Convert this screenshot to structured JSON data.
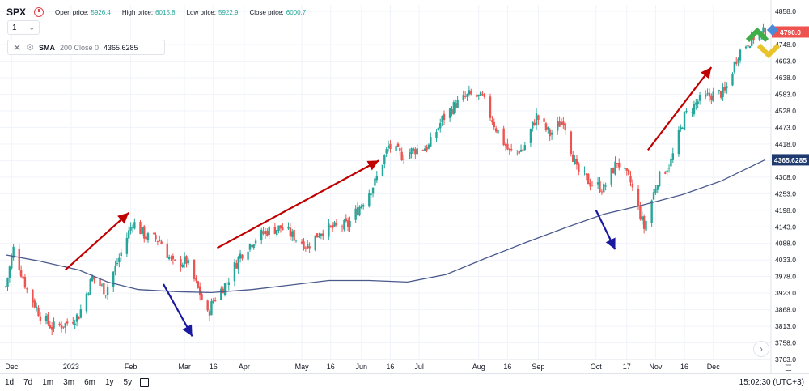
{
  "header": {
    "symbol": "SPX",
    "ohlc": [
      {
        "label": "Open price:",
        "value": "5926.4"
      },
      {
        "label": "High price:",
        "value": "6015.8"
      },
      {
        "label": "Low price:",
        "value": "5922.9"
      },
      {
        "label": "Close price:",
        "value": "6000.7"
      }
    ]
  },
  "interval": {
    "value": "1"
  },
  "indicator": {
    "name": "SMA",
    "params": "200 Close 0",
    "value": "4365.6285"
  },
  "bottom_bar": {
    "ranges": [
      "1d",
      "7d",
      "1m",
      "3m",
      "6m",
      "1y",
      "5y"
    ],
    "time": "15:02:30 (UTC+3)"
  },
  "colors": {
    "up": "#26a69a",
    "down": "#ef5350",
    "sma": "#4a5a8c",
    "sma_label_bg": "#1e3a6e",
    "red_arrow": "#c00000",
    "blue_arrow": "#1a1aa0",
    "price_label_bg": "#ef5350"
  },
  "chart_data": {
    "type": "candlestick",
    "y_ticks": [
      "4858.0",
      "4748.0",
      "4693.0",
      "4638.0",
      "4583.0",
      "4528.0",
      "4473.0",
      "4418.0",
      "4363.0",
      "4308.0",
      "4253.0",
      "4198.0",
      "4143.0",
      "4088.0",
      "4033.0",
      "3978.0",
      "3923.0",
      "3868.0",
      "3813.0",
      "3758.0",
      "3703.0"
    ],
    "ylim": [
      3703,
      4880
    ],
    "x_ticks": [
      "Dec",
      "2023",
      "Feb",
      "Mar",
      "16",
      "Apr",
      "May",
      "16",
      "Jun",
      "16",
      "Jul",
      "Aug",
      "16",
      "Sep",
      "Oct",
      "17",
      "Nov",
      "16",
      "Dec"
    ],
    "current_price_label": "4790.0",
    "sma_label": "4365.6285",
    "close_series": [
      {
        "x": "2022-11-28",
        "y": 3945
      },
      {
        "x": "2022-12-02",
        "y": 4070
      },
      {
        "x": "2022-12-09",
        "y": 3935
      },
      {
        "x": "2022-12-16",
        "y": 3850
      },
      {
        "x": "2022-12-22",
        "y": 3810
      },
      {
        "x": "2022-12-29",
        "y": 3820
      },
      {
        "x": "2023-01-05",
        "y": 3850
      },
      {
        "x": "2023-01-12",
        "y": 3975
      },
      {
        "x": "2023-01-19",
        "y": 3930
      },
      {
        "x": "2023-01-26",
        "y": 4040
      },
      {
        "x": "2023-02-02",
        "y": 4160
      },
      {
        "x": "2023-02-09",
        "y": 4110
      },
      {
        "x": "2023-02-16",
        "y": 4100
      },
      {
        "x": "2023-02-23",
        "y": 4020
      },
      {
        "x": "2023-03-02",
        "y": 4030
      },
      {
        "x": "2023-03-09",
        "y": 3920
      },
      {
        "x": "2023-03-13",
        "y": 3850
      },
      {
        "x": "2023-03-16",
        "y": 3900
      },
      {
        "x": "2023-03-23",
        "y": 3960
      },
      {
        "x": "2023-03-30",
        "y": 4050
      },
      {
        "x": "2023-04-06",
        "y": 4100
      },
      {
        "x": "2023-04-13",
        "y": 4130
      },
      {
        "x": "2023-04-20",
        "y": 4140
      },
      {
        "x": "2023-04-27",
        "y": 4110
      },
      {
        "x": "2023-05-04",
        "y": 4080
      },
      {
        "x": "2023-05-11",
        "y": 4130
      },
      {
        "x": "2023-05-18",
        "y": 4140
      },
      {
        "x": "2023-05-25",
        "y": 4150
      },
      {
        "x": "2023-06-01",
        "y": 4220
      },
      {
        "x": "2023-06-08",
        "y": 4290
      },
      {
        "x": "2023-06-15",
        "y": 4410
      },
      {
        "x": "2023-06-22",
        "y": 4380
      },
      {
        "x": "2023-06-29",
        "y": 4400
      },
      {
        "x": "2023-07-06",
        "y": 4410
      },
      {
        "x": "2023-07-13",
        "y": 4500
      },
      {
        "x": "2023-07-20",
        "y": 4550
      },
      {
        "x": "2023-07-27",
        "y": 4580
      },
      {
        "x": "2023-08-03",
        "y": 4570
      },
      {
        "x": "2023-08-10",
        "y": 4470
      },
      {
        "x": "2023-08-17",
        "y": 4390
      },
      {
        "x": "2023-08-24",
        "y": 4400
      },
      {
        "x": "2023-08-31",
        "y": 4510
      },
      {
        "x": "2023-09-07",
        "y": 4450
      },
      {
        "x": "2023-09-14",
        "y": 4500
      },
      {
        "x": "2023-09-21",
        "y": 4330
      },
      {
        "x": "2023-09-28",
        "y": 4290
      },
      {
        "x": "2023-10-05",
        "y": 4270
      },
      {
        "x": "2023-10-12",
        "y": 4360
      },
      {
        "x": "2023-10-19",
        "y": 4290
      },
      {
        "x": "2023-10-26",
        "y": 4140
      },
      {
        "x": "2023-11-02",
        "y": 4300
      },
      {
        "x": "2023-11-09",
        "y": 4360
      },
      {
        "x": "2023-11-16",
        "y": 4510
      },
      {
        "x": "2023-11-23",
        "y": 4560
      },
      {
        "x": "2023-11-30",
        "y": 4580
      },
      {
        "x": "2023-12-07",
        "y": 4590
      },
      {
        "x": "2023-12-14",
        "y": 4720
      },
      {
        "x": "2023-12-21",
        "y": 4770
      },
      {
        "x": "2023-12-28",
        "y": 4790
      }
    ],
    "sma_series": [
      {
        "x": "2022-11-28",
        "y": 4050
      },
      {
        "x": "2022-12-15",
        "y": 4030
      },
      {
        "x": "2023-01-05",
        "y": 4000
      },
      {
        "x": "2023-01-20",
        "y": 3960
      },
      {
        "x": "2023-02-05",
        "y": 3935
      },
      {
        "x": "2023-02-25",
        "y": 3928
      },
      {
        "x": "2023-03-15",
        "y": 3925
      },
      {
        "x": "2023-04-05",
        "y": 3935
      },
      {
        "x": "2023-04-25",
        "y": 3950
      },
      {
        "x": "2023-05-15",
        "y": 3965
      },
      {
        "x": "2023-06-05",
        "y": 3965
      },
      {
        "x": "2023-06-25",
        "y": 3960
      },
      {
        "x": "2023-07-15",
        "y": 3985
      },
      {
        "x": "2023-08-05",
        "y": 4040
      },
      {
        "x": "2023-08-25",
        "y": 4090
      },
      {
        "x": "2023-09-15",
        "y": 4140
      },
      {
        "x": "2023-10-05",
        "y": 4185
      },
      {
        "x": "2023-10-25",
        "y": 4215
      },
      {
        "x": "2023-11-15",
        "y": 4250
      },
      {
        "x": "2023-12-05",
        "y": 4295
      },
      {
        "x": "2023-12-28",
        "y": 4366
      }
    ]
  }
}
